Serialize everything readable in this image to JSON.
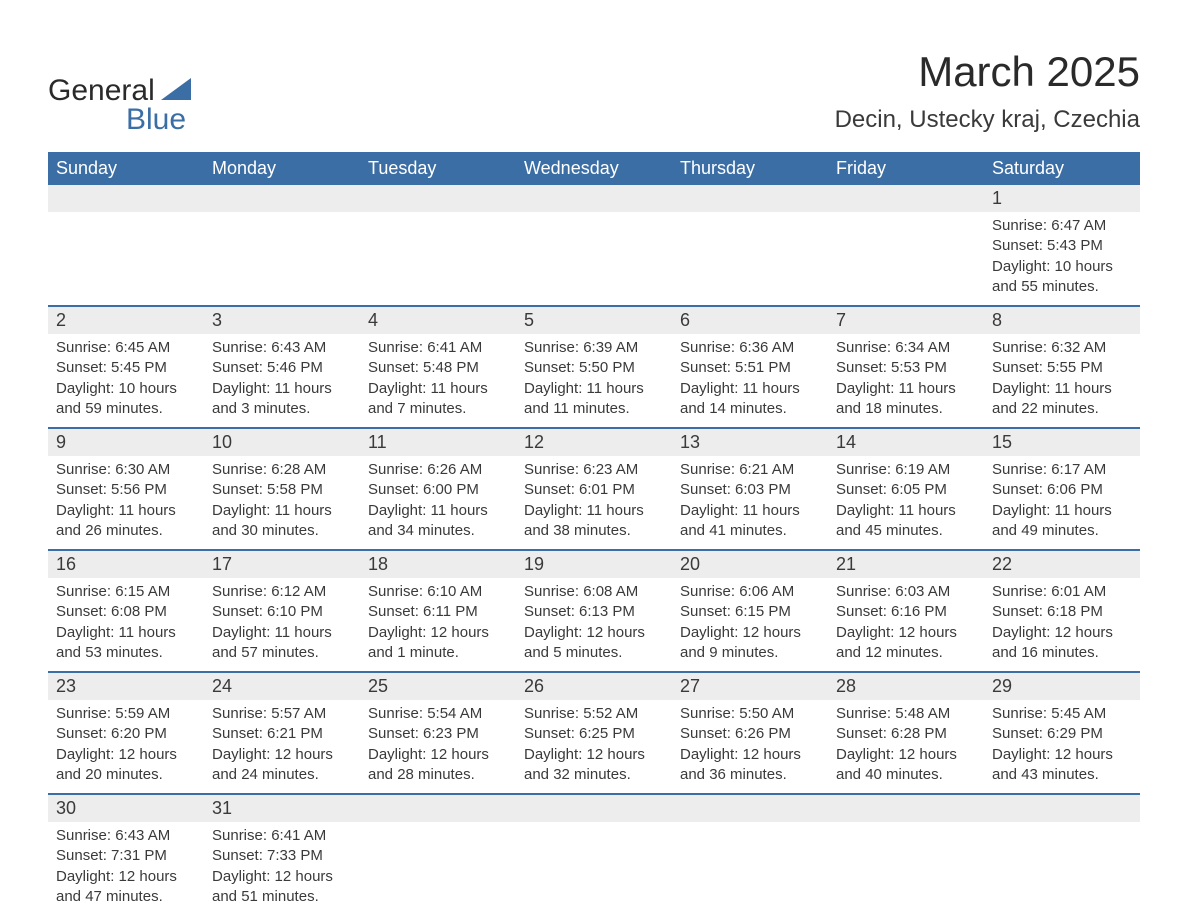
{
  "brand": {
    "word1": "General",
    "word2": "Blue",
    "tri_color": "#3b6ea5"
  },
  "title": "March 2025",
  "location": "Decin, Ustecky kraj, Czechia",
  "colors": {
    "header_bg": "#3b6ea5",
    "header_text": "#ffffff",
    "daynum_bg": "#ededed",
    "row_divider": "#3b6ea5",
    "body_text": "#3a3a3a",
    "page_bg": "#ffffff"
  },
  "typography": {
    "title_fontsize": 42,
    "location_fontsize": 24,
    "dayhead_fontsize": 18,
    "daynum_fontsize": 18,
    "detail_fontsize": 15
  },
  "day_headers": [
    "Sunday",
    "Monday",
    "Tuesday",
    "Wednesday",
    "Thursday",
    "Friday",
    "Saturday"
  ],
  "weeks": [
    [
      null,
      null,
      null,
      null,
      null,
      null,
      {
        "n": "1",
        "sunrise": "Sunrise: 6:47 AM",
        "sunset": "Sunset: 5:43 PM",
        "daylight": "Daylight: 10 hours and 55 minutes."
      }
    ],
    [
      {
        "n": "2",
        "sunrise": "Sunrise: 6:45 AM",
        "sunset": "Sunset: 5:45 PM",
        "daylight": "Daylight: 10 hours and 59 minutes."
      },
      {
        "n": "3",
        "sunrise": "Sunrise: 6:43 AM",
        "sunset": "Sunset: 5:46 PM",
        "daylight": "Daylight: 11 hours and 3 minutes."
      },
      {
        "n": "4",
        "sunrise": "Sunrise: 6:41 AM",
        "sunset": "Sunset: 5:48 PM",
        "daylight": "Daylight: 11 hours and 7 minutes."
      },
      {
        "n": "5",
        "sunrise": "Sunrise: 6:39 AM",
        "sunset": "Sunset: 5:50 PM",
        "daylight": "Daylight: 11 hours and 11 minutes."
      },
      {
        "n": "6",
        "sunrise": "Sunrise: 6:36 AM",
        "sunset": "Sunset: 5:51 PM",
        "daylight": "Daylight: 11 hours and 14 minutes."
      },
      {
        "n": "7",
        "sunrise": "Sunrise: 6:34 AM",
        "sunset": "Sunset: 5:53 PM",
        "daylight": "Daylight: 11 hours and 18 minutes."
      },
      {
        "n": "8",
        "sunrise": "Sunrise: 6:32 AM",
        "sunset": "Sunset: 5:55 PM",
        "daylight": "Daylight: 11 hours and 22 minutes."
      }
    ],
    [
      {
        "n": "9",
        "sunrise": "Sunrise: 6:30 AM",
        "sunset": "Sunset: 5:56 PM",
        "daylight": "Daylight: 11 hours and 26 minutes."
      },
      {
        "n": "10",
        "sunrise": "Sunrise: 6:28 AM",
        "sunset": "Sunset: 5:58 PM",
        "daylight": "Daylight: 11 hours and 30 minutes."
      },
      {
        "n": "11",
        "sunrise": "Sunrise: 6:26 AM",
        "sunset": "Sunset: 6:00 PM",
        "daylight": "Daylight: 11 hours and 34 minutes."
      },
      {
        "n": "12",
        "sunrise": "Sunrise: 6:23 AM",
        "sunset": "Sunset: 6:01 PM",
        "daylight": "Daylight: 11 hours and 38 minutes."
      },
      {
        "n": "13",
        "sunrise": "Sunrise: 6:21 AM",
        "sunset": "Sunset: 6:03 PM",
        "daylight": "Daylight: 11 hours and 41 minutes."
      },
      {
        "n": "14",
        "sunrise": "Sunrise: 6:19 AM",
        "sunset": "Sunset: 6:05 PM",
        "daylight": "Daylight: 11 hours and 45 minutes."
      },
      {
        "n": "15",
        "sunrise": "Sunrise: 6:17 AM",
        "sunset": "Sunset: 6:06 PM",
        "daylight": "Daylight: 11 hours and 49 minutes."
      }
    ],
    [
      {
        "n": "16",
        "sunrise": "Sunrise: 6:15 AM",
        "sunset": "Sunset: 6:08 PM",
        "daylight": "Daylight: 11 hours and 53 minutes."
      },
      {
        "n": "17",
        "sunrise": "Sunrise: 6:12 AM",
        "sunset": "Sunset: 6:10 PM",
        "daylight": "Daylight: 11 hours and 57 minutes."
      },
      {
        "n": "18",
        "sunrise": "Sunrise: 6:10 AM",
        "sunset": "Sunset: 6:11 PM",
        "daylight": "Daylight: 12 hours and 1 minute."
      },
      {
        "n": "19",
        "sunrise": "Sunrise: 6:08 AM",
        "sunset": "Sunset: 6:13 PM",
        "daylight": "Daylight: 12 hours and 5 minutes."
      },
      {
        "n": "20",
        "sunrise": "Sunrise: 6:06 AM",
        "sunset": "Sunset: 6:15 PM",
        "daylight": "Daylight: 12 hours and 9 minutes."
      },
      {
        "n": "21",
        "sunrise": "Sunrise: 6:03 AM",
        "sunset": "Sunset: 6:16 PM",
        "daylight": "Daylight: 12 hours and 12 minutes."
      },
      {
        "n": "22",
        "sunrise": "Sunrise: 6:01 AM",
        "sunset": "Sunset: 6:18 PM",
        "daylight": "Daylight: 12 hours and 16 minutes."
      }
    ],
    [
      {
        "n": "23",
        "sunrise": "Sunrise: 5:59 AM",
        "sunset": "Sunset: 6:20 PM",
        "daylight": "Daylight: 12 hours and 20 minutes."
      },
      {
        "n": "24",
        "sunrise": "Sunrise: 5:57 AM",
        "sunset": "Sunset: 6:21 PM",
        "daylight": "Daylight: 12 hours and 24 minutes."
      },
      {
        "n": "25",
        "sunrise": "Sunrise: 5:54 AM",
        "sunset": "Sunset: 6:23 PM",
        "daylight": "Daylight: 12 hours and 28 minutes."
      },
      {
        "n": "26",
        "sunrise": "Sunrise: 5:52 AM",
        "sunset": "Sunset: 6:25 PM",
        "daylight": "Daylight: 12 hours and 32 minutes."
      },
      {
        "n": "27",
        "sunrise": "Sunrise: 5:50 AM",
        "sunset": "Sunset: 6:26 PM",
        "daylight": "Daylight: 12 hours and 36 minutes."
      },
      {
        "n": "28",
        "sunrise": "Sunrise: 5:48 AM",
        "sunset": "Sunset: 6:28 PM",
        "daylight": "Daylight: 12 hours and 40 minutes."
      },
      {
        "n": "29",
        "sunrise": "Sunrise: 5:45 AM",
        "sunset": "Sunset: 6:29 PM",
        "daylight": "Daylight: 12 hours and 43 minutes."
      }
    ],
    [
      {
        "n": "30",
        "sunrise": "Sunrise: 6:43 AM",
        "sunset": "Sunset: 7:31 PM",
        "daylight": "Daylight: 12 hours and 47 minutes."
      },
      {
        "n": "31",
        "sunrise": "Sunrise: 6:41 AM",
        "sunset": "Sunset: 7:33 PM",
        "daylight": "Daylight: 12 hours and 51 minutes."
      },
      null,
      null,
      null,
      null,
      null
    ]
  ]
}
